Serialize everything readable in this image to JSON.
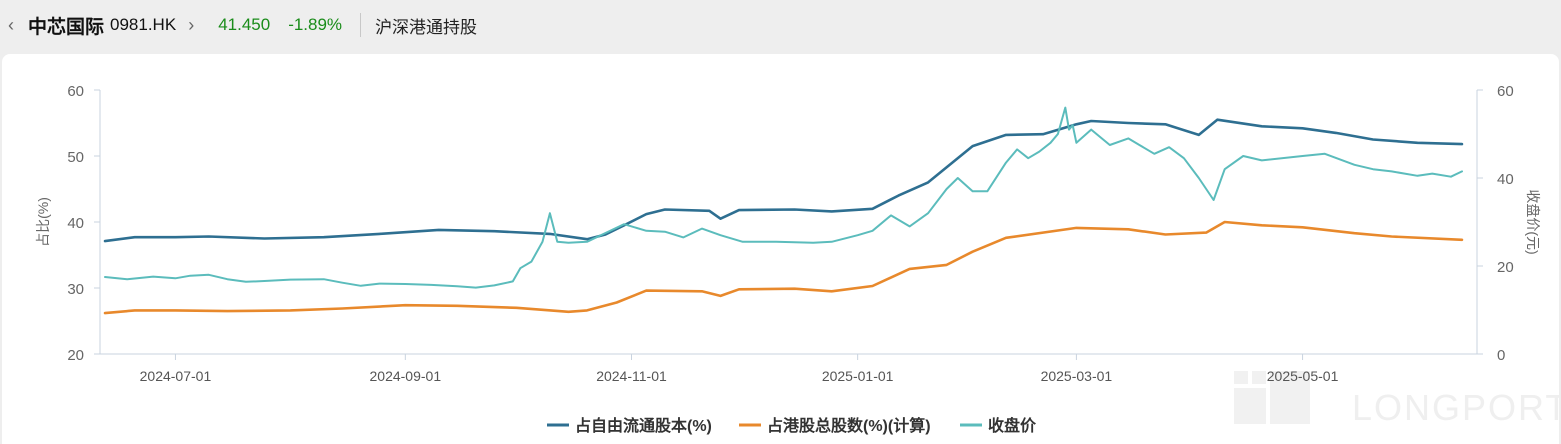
{
  "header": {
    "stock_name": "中芯国际",
    "stock_code": "0981.HK",
    "price": "41.450",
    "change": "-1.89%",
    "section_title": "沪深港通持股",
    "price_color": "#1a8c1a"
  },
  "watermark": "LONGPORT",
  "chart_data": {
    "type": "line",
    "x_tick_labels": [
      "2024-07-01",
      "2024-09-01",
      "2024-11-01",
      "2025-01-01",
      "2025-03-01",
      "2025-05-01"
    ],
    "x_range": [
      "2024-06-12",
      "2025-06-13"
    ],
    "y_left": {
      "label": "占比(%)",
      "ticks": [
        "60",
        "50",
        "40",
        "30",
        "20"
      ],
      "range": [
        20,
        60
      ]
    },
    "y_right": {
      "label": "收盘价(元)",
      "ticks": [
        "60",
        "40",
        "20",
        "0"
      ],
      "range": [
        0,
        60
      ]
    },
    "legend_position": "bottom",
    "series": [
      {
        "name": "占自由流通股本(%)",
        "axis": "left",
        "color": "#2e6f91",
        "points": [
          [
            "2024-06-12",
            37.1
          ],
          [
            "2024-06-20",
            37.7
          ],
          [
            "2024-07-01",
            37.7
          ],
          [
            "2024-07-10",
            37.8
          ],
          [
            "2024-07-25",
            37.5
          ],
          [
            "2024-08-10",
            37.7
          ],
          [
            "2024-08-25",
            38.2
          ],
          [
            "2024-09-10",
            38.8
          ],
          [
            "2024-09-25",
            38.6
          ],
          [
            "2024-10-10",
            38.2
          ],
          [
            "2024-10-20",
            37.4
          ],
          [
            "2024-10-25",
            38.1
          ],
          [
            "2024-10-30",
            39.5
          ],
          [
            "2024-11-05",
            41.2
          ],
          [
            "2024-11-10",
            41.9
          ],
          [
            "2024-11-22",
            41.7
          ],
          [
            "2024-11-25",
            40.5
          ],
          [
            "2024-11-30",
            41.8
          ],
          [
            "2024-12-15",
            41.9
          ],
          [
            "2024-12-25",
            41.6
          ],
          [
            "2025-01-05",
            42.0
          ],
          [
            "2025-01-12",
            44.0
          ],
          [
            "2025-01-20",
            46.0
          ],
          [
            "2025-02-01",
            51.5
          ],
          [
            "2025-02-10",
            53.2
          ],
          [
            "2025-02-20",
            53.3
          ],
          [
            "2025-03-01",
            54.8
          ],
          [
            "2025-03-05",
            55.3
          ],
          [
            "2025-03-15",
            55.0
          ],
          [
            "2025-03-25",
            54.8
          ],
          [
            "2025-04-03",
            53.2
          ],
          [
            "2025-04-08",
            55.5
          ],
          [
            "2025-04-20",
            54.5
          ],
          [
            "2025-05-01",
            54.2
          ],
          [
            "2025-05-10",
            53.5
          ],
          [
            "2025-05-20",
            52.5
          ],
          [
            "2025-06-01",
            52.0
          ],
          [
            "2025-06-13",
            51.8
          ]
        ]
      },
      {
        "name": "占港股总股数(%)(计算)",
        "axis": "left",
        "color": "#e8892c",
        "points": [
          [
            "2024-06-12",
            26.2
          ],
          [
            "2024-06-20",
            26.6
          ],
          [
            "2024-07-01",
            26.6
          ],
          [
            "2024-07-15",
            26.5
          ],
          [
            "2024-08-01",
            26.6
          ],
          [
            "2024-08-15",
            26.9
          ],
          [
            "2024-09-01",
            27.4
          ],
          [
            "2024-09-15",
            27.3
          ],
          [
            "2024-10-01",
            27.0
          ],
          [
            "2024-10-15",
            26.4
          ],
          [
            "2024-10-20",
            26.6
          ],
          [
            "2024-10-28",
            27.8
          ],
          [
            "2024-11-05",
            29.6
          ],
          [
            "2024-11-20",
            29.5
          ],
          [
            "2024-11-25",
            28.8
          ],
          [
            "2024-11-30",
            29.8
          ],
          [
            "2024-12-15",
            29.9
          ],
          [
            "2024-12-25",
            29.5
          ],
          [
            "2025-01-05",
            30.3
          ],
          [
            "2025-01-15",
            32.9
          ],
          [
            "2025-01-25",
            33.5
          ],
          [
            "2025-02-01",
            35.5
          ],
          [
            "2025-02-10",
            37.6
          ],
          [
            "2025-03-01",
            39.1
          ],
          [
            "2025-03-15",
            38.9
          ],
          [
            "2025-03-25",
            38.1
          ],
          [
            "2025-04-05",
            38.4
          ],
          [
            "2025-04-10",
            40.0
          ],
          [
            "2025-04-20",
            39.5
          ],
          [
            "2025-05-01",
            39.2
          ],
          [
            "2025-05-15",
            38.3
          ],
          [
            "2025-05-25",
            37.8
          ],
          [
            "2025-06-13",
            37.3
          ]
        ]
      },
      {
        "name": "收盘价",
        "axis": "right",
        "color": "#5bbcbc",
        "points": [
          [
            "2024-06-12",
            17.5
          ],
          [
            "2024-06-18",
            17.0
          ],
          [
            "2024-06-25",
            17.6
          ],
          [
            "2024-07-01",
            17.2
          ],
          [
            "2024-07-05",
            17.8
          ],
          [
            "2024-07-10",
            18.0
          ],
          [
            "2024-07-15",
            17.0
          ],
          [
            "2024-07-20",
            16.4
          ],
          [
            "2024-07-25",
            16.6
          ],
          [
            "2024-08-01",
            16.9
          ],
          [
            "2024-08-10",
            17.0
          ],
          [
            "2024-08-15",
            16.2
          ],
          [
            "2024-08-20",
            15.5
          ],
          [
            "2024-08-25",
            16.0
          ],
          [
            "2024-09-01",
            15.9
          ],
          [
            "2024-09-08",
            15.7
          ],
          [
            "2024-09-15",
            15.4
          ],
          [
            "2024-09-20",
            15.1
          ],
          [
            "2024-09-25",
            15.6
          ],
          [
            "2024-09-30",
            16.5
          ],
          [
            "2024-10-02",
            19.5
          ],
          [
            "2024-10-05",
            21.0
          ],
          [
            "2024-10-08",
            25.5
          ],
          [
            "2024-10-10",
            32.0
          ],
          [
            "2024-10-12",
            25.5
          ],
          [
            "2024-10-15",
            25.3
          ],
          [
            "2024-10-20",
            25.5
          ],
          [
            "2024-10-25",
            27.5
          ],
          [
            "2024-10-30",
            29.5
          ],
          [
            "2024-11-05",
            28.0
          ],
          [
            "2024-11-10",
            27.8
          ],
          [
            "2024-11-15",
            26.5
          ],
          [
            "2024-11-20",
            28.5
          ],
          [
            "2024-11-25",
            27.0
          ],
          [
            "2024-12-01",
            25.5
          ],
          [
            "2024-12-10",
            25.5
          ],
          [
            "2024-12-20",
            25.3
          ],
          [
            "2024-12-25",
            25.5
          ],
          [
            "2025-01-01",
            27.0
          ],
          [
            "2025-01-05",
            28.0
          ],
          [
            "2025-01-10",
            31.5
          ],
          [
            "2025-01-15",
            29.0
          ],
          [
            "2025-01-20",
            32.0
          ],
          [
            "2025-01-25",
            37.5
          ],
          [
            "2025-01-28",
            40.0
          ],
          [
            "2025-02-01",
            37.0
          ],
          [
            "2025-02-05",
            37.0
          ],
          [
            "2025-02-10",
            43.5
          ],
          [
            "2025-02-13",
            46.5
          ],
          [
            "2025-02-16",
            44.5
          ],
          [
            "2025-02-19",
            46.0
          ],
          [
            "2025-02-22",
            48.0
          ],
          [
            "2025-02-24",
            50.0
          ],
          [
            "2025-02-26",
            56.0
          ],
          [
            "2025-02-27",
            51.0
          ],
          [
            "2025-02-28",
            52.0
          ],
          [
            "2025-03-01",
            48.0
          ],
          [
            "2025-03-05",
            51.0
          ],
          [
            "2025-03-10",
            47.5
          ],
          [
            "2025-03-15",
            49.0
          ],
          [
            "2025-03-18",
            47.5
          ],
          [
            "2025-03-22",
            45.5
          ],
          [
            "2025-03-26",
            47.0
          ],
          [
            "2025-03-30",
            44.5
          ],
          [
            "2025-04-03",
            40.0
          ],
          [
            "2025-04-07",
            35.0
          ],
          [
            "2025-04-10",
            42.0
          ],
          [
            "2025-04-15",
            45.0
          ],
          [
            "2025-04-20",
            44.0
          ],
          [
            "2025-05-01",
            45.0
          ],
          [
            "2025-05-07",
            45.5
          ],
          [
            "2025-05-15",
            43.0
          ],
          [
            "2025-05-20",
            42.0
          ],
          [
            "2025-05-25",
            41.5
          ],
          [
            "2025-06-01",
            40.5
          ],
          [
            "2025-06-05",
            41.0
          ],
          [
            "2025-06-10",
            40.3
          ],
          [
            "2025-06-13",
            41.5
          ]
        ]
      }
    ]
  }
}
